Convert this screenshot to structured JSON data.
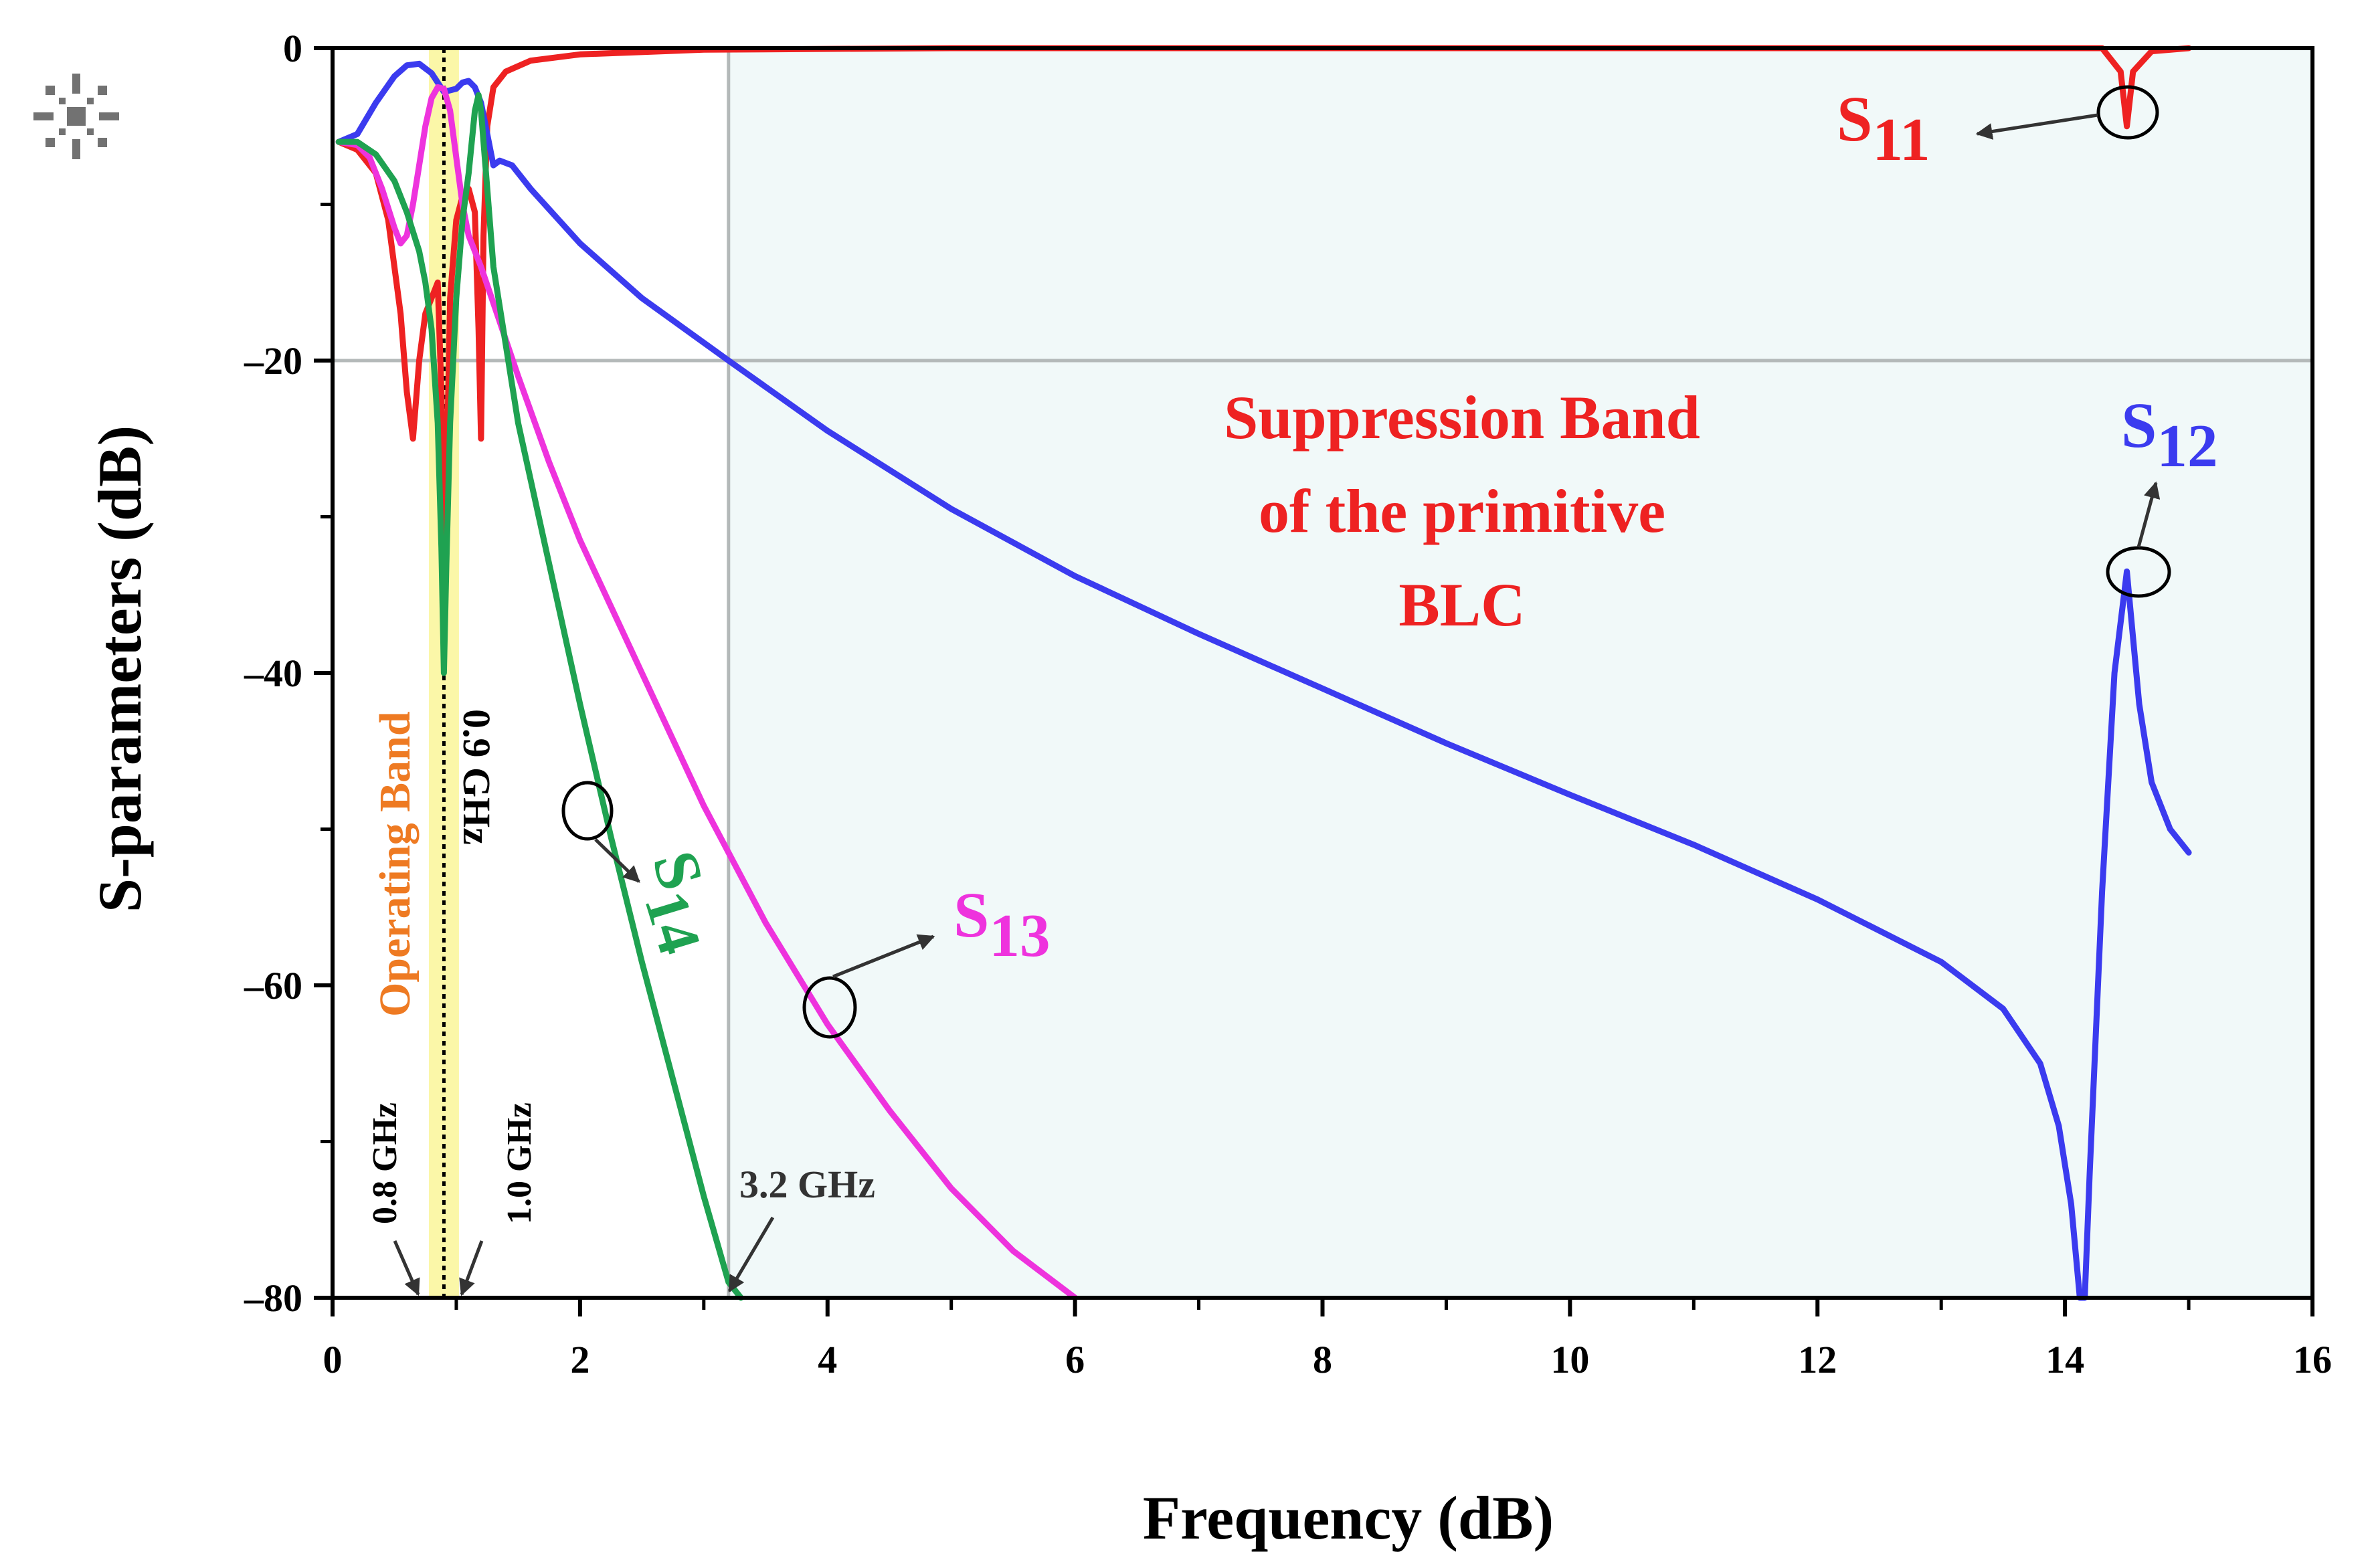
{
  "chart_data": {
    "type": "line",
    "title": "",
    "xlabel": "Frequency (dB)",
    "ylabel": "S-parameters (dB)",
    "xlim": [
      0,
      16
    ],
    "ylim": [
      -80,
      0
    ],
    "xticks": [
      0,
      2,
      4,
      6,
      8,
      10,
      12,
      14,
      16
    ],
    "xtick_labels": [
      "0",
      "2",
      "4",
      "6",
      "8",
      "10",
      "12",
      "14",
      "16"
    ],
    "yticks": [
      0,
      -20,
      -40,
      -60,
      -80
    ],
    "ytick_labels": [
      "0",
      "-20",
      "-40",
      "-60",
      "-80"
    ],
    "grid": false,
    "reference_lines": {
      "y": -20,
      "x": 3.2
    },
    "operating_band": {
      "x_from": 0.8,
      "x_to": 1.0,
      "label": "Operating Band",
      "center_label": "0.9 GHz",
      "center": 0.9
    },
    "suppression_band": {
      "x_from": 3.2,
      "x_to": 16,
      "label_lines": [
        "Suppression Band",
        "of the primitive",
        "BLC"
      ]
    },
    "markers": {
      "low_edge": "0.8 GHz",
      "high_edge": "1.0 GHz",
      "cutoff": "3.2 GHz"
    },
    "series": [
      {
        "name": "S11",
        "base": "S",
        "sub": "11",
        "color": "#ee2222",
        "x": [
          0.05,
          0.2,
          0.35,
          0.45,
          0.55,
          0.6,
          0.65,
          0.7,
          0.75,
          0.8,
          0.85,
          0.88,
          0.9,
          0.91,
          0.92,
          0.95,
          1.0,
          1.05,
          1.1,
          1.15,
          1.18,
          1.2,
          1.22,
          1.25,
          1.3,
          1.4,
          1.6,
          2.0,
          3.0,
          5.0,
          10.0,
          14.3,
          14.45,
          14.5,
          14.55,
          14.7,
          15.0
        ],
        "values": [
          -6,
          -6.5,
          -8,
          -11,
          -17,
          -22,
          -25,
          -20,
          -17,
          -16,
          -15,
          -22,
          -30,
          -36,
          -28,
          -16,
          -11,
          -9.5,
          -9,
          -10.5,
          -18,
          -25,
          -12,
          -5,
          -2.5,
          -1.5,
          -0.8,
          -0.4,
          -0.1,
          0,
          0,
          0,
          -1.5,
          -5,
          -1.5,
          -0.2,
          0
        ]
      },
      {
        "name": "S12",
        "base": "S",
        "sub": "12",
        "color": "#3b3bef",
        "x": [
          0.05,
          0.2,
          0.35,
          0.5,
          0.6,
          0.7,
          0.8,
          0.9,
          1.0,
          1.05,
          1.1,
          1.15,
          1.2,
          1.25,
          1.3,
          1.35,
          1.45,
          1.6,
          2.0,
          2.5,
          3.2,
          4.0,
          5.0,
          6.0,
          7.0,
          8.0,
          9.0,
          10.0,
          11.0,
          12.0,
          13.0,
          13.5,
          13.8,
          13.95,
          14.05,
          14.12,
          14.16,
          14.2,
          14.3,
          14.4,
          14.5,
          14.6,
          14.7,
          14.85,
          15.0
        ],
        "values": [
          -6,
          -5.5,
          -3.5,
          -1.8,
          -1.1,
          -1,
          -1.6,
          -2.8,
          -2.6,
          -2.2,
          -2.1,
          -2.5,
          -3.5,
          -5.5,
          -7.5,
          -7.2,
          -7.5,
          -9,
          -12.5,
          -16,
          -20,
          -24.5,
          -29.5,
          -33.8,
          -37.5,
          -41,
          -44.5,
          -47.8,
          -51,
          -54.5,
          -58.5,
          -61.5,
          -65,
          -69,
          -74,
          -80,
          -80,
          -72,
          -54,
          -40,
          -33.5,
          -42,
          -47,
          -50,
          -51.5
        ]
      },
      {
        "name": "S13",
        "base": "S",
        "sub": "13",
        "color": "#ee33dd",
        "x": [
          0.05,
          0.2,
          0.3,
          0.4,
          0.5,
          0.55,
          0.6,
          0.65,
          0.7,
          0.75,
          0.8,
          0.85,
          0.9,
          0.95,
          1.0,
          1.05,
          1.1,
          1.2,
          1.35,
          1.5,
          1.75,
          2.0,
          2.5,
          3.0,
          3.2,
          3.5,
          4.0,
          4.5,
          5.0,
          5.5,
          6.0
        ],
        "values": [
          -6,
          -6.2,
          -7,
          -9,
          -11.5,
          -12.5,
          -12,
          -10,
          -7.5,
          -5,
          -3.2,
          -2.5,
          -2.6,
          -4,
          -7,
          -10,
          -12,
          -14,
          -17.5,
          -21,
          -26.5,
          -31.5,
          -40,
          -48.5,
          -51.5,
          -56,
          -62.5,
          -68,
          -73,
          -77,
          -80
        ]
      },
      {
        "name": "S14",
        "base": "S",
        "sub": "14",
        "color": "#1fa251",
        "x": [
          0.05,
          0.2,
          0.35,
          0.5,
          0.6,
          0.7,
          0.75,
          0.8,
          0.85,
          0.88,
          0.9,
          0.92,
          0.95,
          1.0,
          1.05,
          1.1,
          1.15,
          1.18,
          1.2,
          1.25,
          1.3,
          1.4,
          1.5,
          1.75,
          2.0,
          2.25,
          2.5,
          2.75,
          3.0,
          3.2,
          3.3
        ],
        "values": [
          -6,
          -6,
          -6.8,
          -8.5,
          -10.5,
          -13,
          -15,
          -18,
          -24,
          -32,
          -40,
          -33,
          -24,
          -16,
          -11,
          -8,
          -4,
          -3,
          -4,
          -9,
          -14,
          -19,
          -24,
          -33,
          -42,
          -50.5,
          -58.5,
          -66,
          -73.5,
          -79,
          -80
        ]
      }
    ]
  }
}
